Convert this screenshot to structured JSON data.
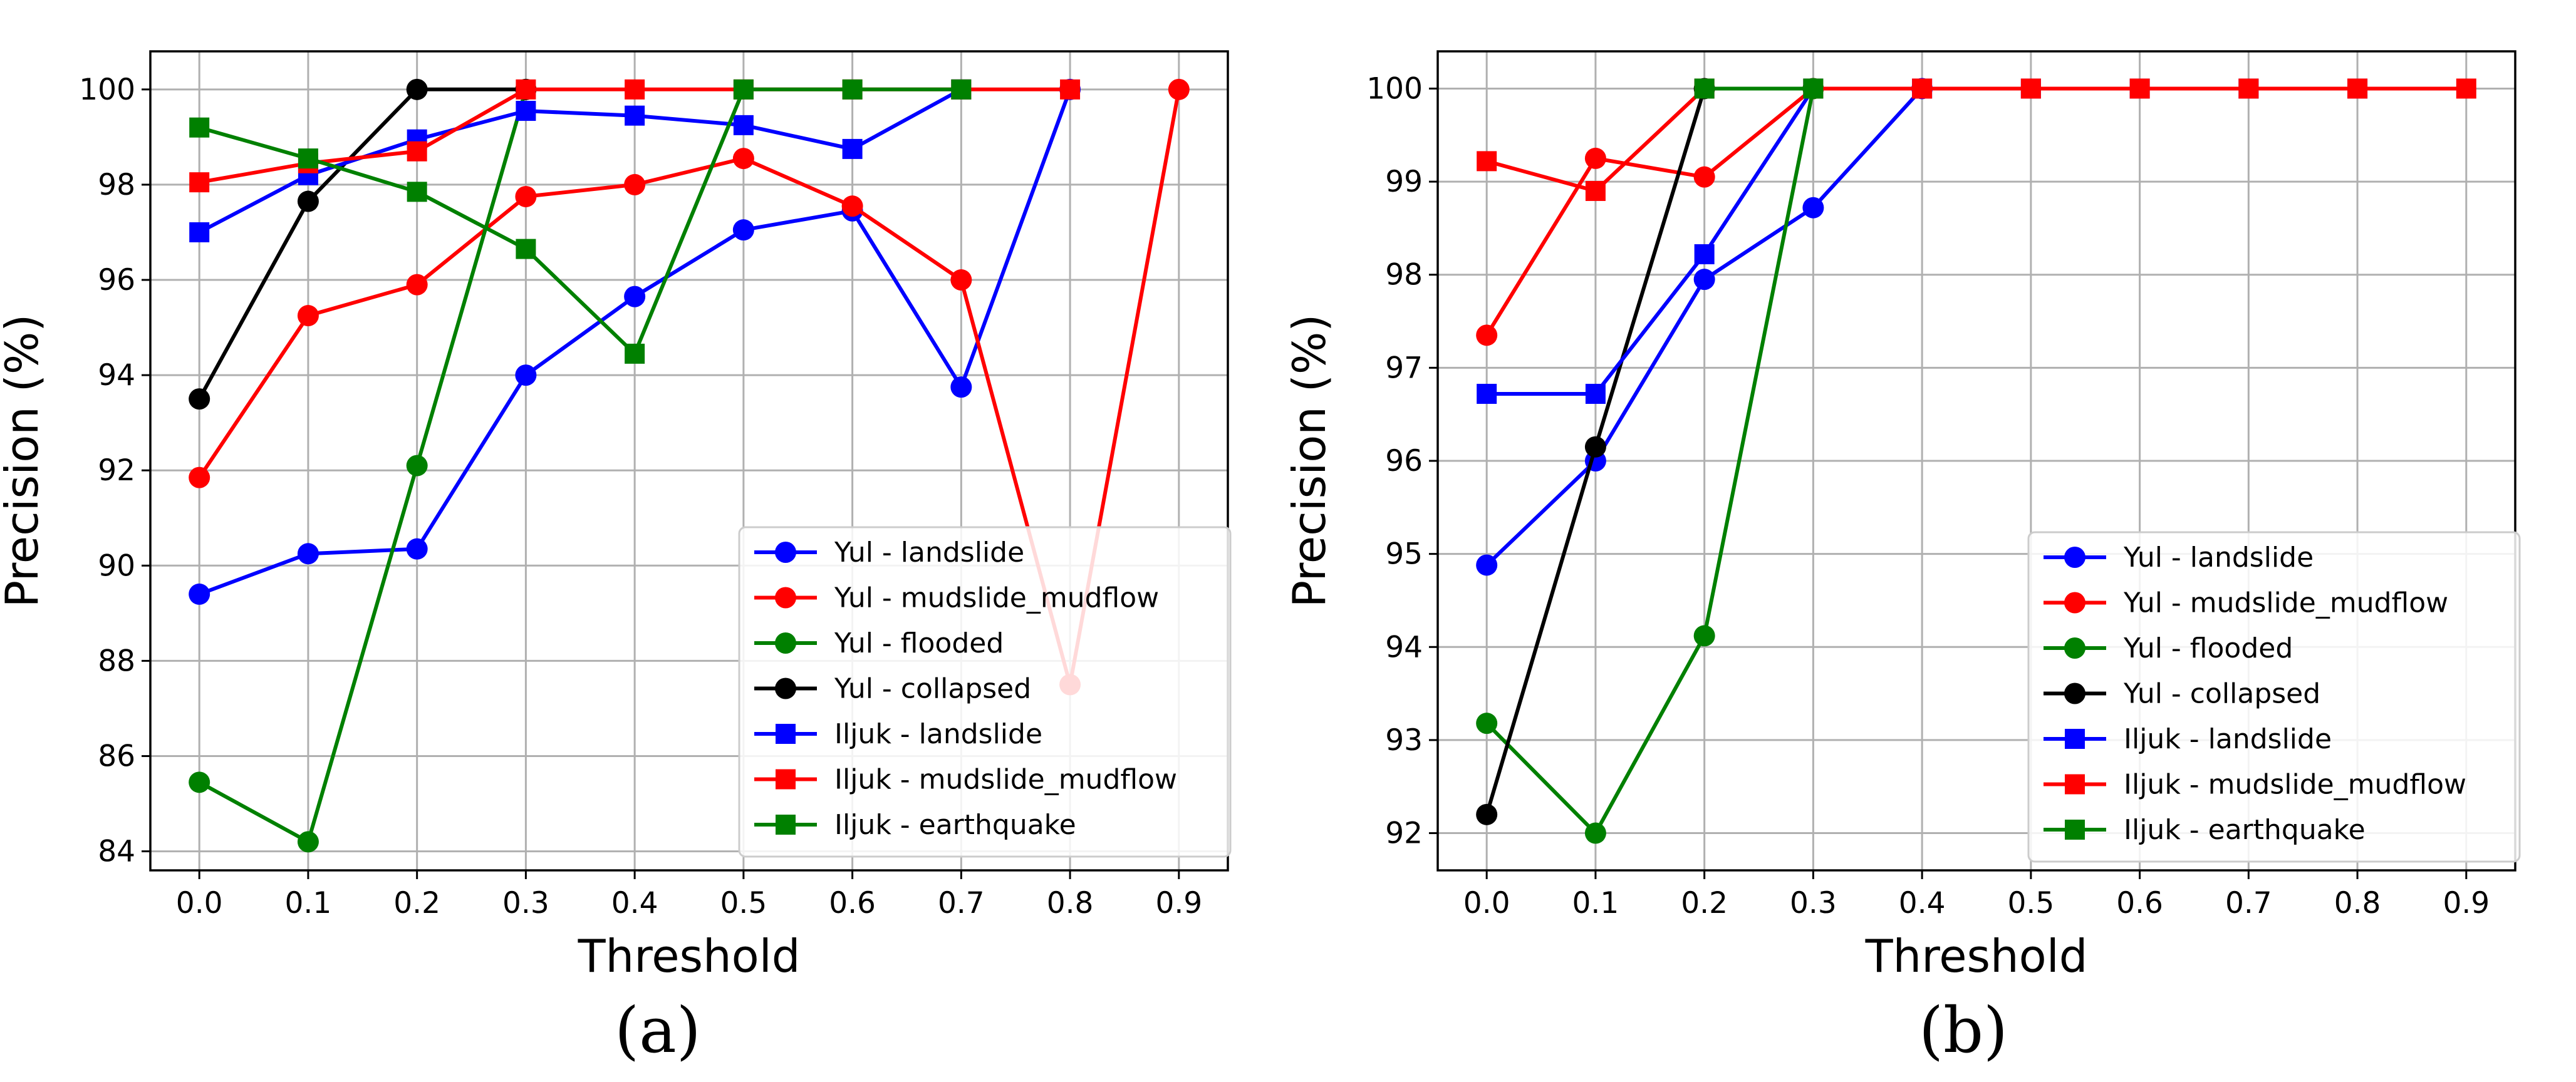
{
  "chart_data": [
    {
      "type": "line",
      "caption": "(a)",
      "xlabel": "Threshold",
      "ylabel": "Precision (%)",
      "xlim": [
        -0.045,
        0.945
      ],
      "ylim": [
        83.6,
        100.8
      ],
      "x_ticks": [
        0.0,
        0.1,
        0.2,
        0.3,
        0.4,
        0.5,
        0.6,
        0.7,
        0.8,
        0.9
      ],
      "x_tick_labels": [
        "0.0",
        "0.1",
        "0.2",
        "0.3",
        "0.4",
        "0.5",
        "0.6",
        "0.7",
        "0.8",
        "0.9"
      ],
      "y_ticks": [
        84,
        86,
        88,
        90,
        92,
        94,
        96,
        98,
        100
      ],
      "y_tick_labels": [
        "84",
        "86",
        "88",
        "90",
        "92",
        "94",
        "96",
        "98",
        "100"
      ],
      "grid": true,
      "legend_position": "lower-right",
      "series": [
        {
          "name": "Yul - landslide",
          "color": "#0000ff",
          "marker": "circle",
          "x": [
            0.0,
            0.1,
            0.2,
            0.3,
            0.4,
            0.5,
            0.6,
            0.7,
            0.8
          ],
          "values": [
            89.4,
            90.25,
            90.35,
            94.0,
            95.65,
            97.05,
            97.45,
            93.75,
            100.0
          ]
        },
        {
          "name": "Yul - mudslide_mudflow",
          "color": "#ff0000",
          "marker": "circle",
          "x": [
            0.0,
            0.1,
            0.2,
            0.3,
            0.4,
            0.5,
            0.6,
            0.7,
            0.8,
            0.9
          ],
          "values": [
            91.85,
            95.25,
            95.9,
            97.75,
            98.0,
            98.55,
            97.55,
            96.0,
            87.5,
            100.0
          ]
        },
        {
          "name": "Yul - flooded",
          "color": "#008000",
          "marker": "circle",
          "x": [
            0.0,
            0.1,
            0.2,
            0.3
          ],
          "values": [
            85.45,
            84.2,
            92.1,
            100.0
          ]
        },
        {
          "name": "Yul - collapsed",
          "color": "#000000",
          "marker": "circle",
          "x": [
            0.0,
            0.1,
            0.2,
            0.3
          ],
          "values": [
            93.5,
            97.65,
            100.0,
            100.0
          ]
        },
        {
          "name": "Iljuk - landslide",
          "color": "#0000ff",
          "marker": "square",
          "x": [
            0.0,
            0.1,
            0.2,
            0.3,
            0.4,
            0.5,
            0.6,
            0.7
          ],
          "values": [
            97.0,
            98.2,
            98.95,
            99.55,
            99.45,
            99.25,
            98.75,
            100.0
          ]
        },
        {
          "name": "Iljuk - mudslide_mudflow",
          "color": "#ff0000",
          "marker": "square",
          "x": [
            0.0,
            0.1,
            0.2,
            0.3,
            0.4,
            0.5,
            0.6,
            0.7,
            0.8
          ],
          "values": [
            98.05,
            98.45,
            98.7,
            100.0,
            100.0,
            100.0,
            100.0,
            100.0,
            100.0
          ]
        },
        {
          "name": "Iljuk - earthquake",
          "color": "#008000",
          "marker": "square",
          "x": [
            0.0,
            0.1,
            0.2,
            0.3,
            0.4,
            0.5,
            0.6,
            0.7
          ],
          "values": [
            99.2,
            98.55,
            97.85,
            96.65,
            94.45,
            100.0,
            100.0,
            100.0
          ]
        }
      ]
    },
    {
      "type": "line",
      "caption": "(b)",
      "xlabel": "Threshold",
      "ylabel": "Precision (%)",
      "xlim": [
        -0.045,
        0.945
      ],
      "ylim": [
        91.6,
        100.4
      ],
      "x_ticks": [
        0.0,
        0.1,
        0.2,
        0.3,
        0.4,
        0.5,
        0.6,
        0.7,
        0.8,
        0.9
      ],
      "x_tick_labels": [
        "0.0",
        "0.1",
        "0.2",
        "0.3",
        "0.4",
        "0.5",
        "0.6",
        "0.7",
        "0.8",
        "0.9"
      ],
      "y_ticks": [
        92,
        93,
        94,
        95,
        96,
        97,
        98,
        99,
        100
      ],
      "y_tick_labels": [
        "92",
        "93",
        "94",
        "95",
        "96",
        "97",
        "98",
        "99",
        "100"
      ],
      "grid": true,
      "legend_position": "lower-right",
      "series": [
        {
          "name": "Yul - landslide",
          "color": "#0000ff",
          "marker": "circle",
          "x": [
            0.0,
            0.1,
            0.2,
            0.3,
            0.4
          ],
          "values": [
            94.88,
            96.0,
            97.95,
            98.72,
            100.0
          ]
        },
        {
          "name": "Yul - mudslide_mudflow",
          "color": "#ff0000",
          "marker": "circle",
          "x": [
            0.0,
            0.1,
            0.2,
            0.3
          ],
          "values": [
            97.35,
            99.25,
            99.05,
            100.0
          ]
        },
        {
          "name": "Yul - flooded",
          "color": "#008000",
          "marker": "circle",
          "x": [
            0.0,
            0.1,
            0.2,
            0.3
          ],
          "values": [
            93.18,
            92.0,
            94.12,
            100.0
          ]
        },
        {
          "name": "Yul - collapsed",
          "color": "#000000",
          "marker": "circle",
          "x": [
            0.0,
            0.1,
            0.2
          ],
          "values": [
            92.2,
            96.15,
            100.0
          ]
        },
        {
          "name": "Iljuk - landslide",
          "color": "#0000ff",
          "marker": "square",
          "x": [
            0.0,
            0.1,
            0.2,
            0.3,
            0.4,
            0.5,
            0.6,
            0.7,
            0.8
          ],
          "values": [
            96.72,
            96.72,
            98.22,
            100.0,
            100.0,
            100.0,
            100.0,
            100.0,
            100.0
          ]
        },
        {
          "name": "Iljuk - mudslide_mudflow",
          "color": "#ff0000",
          "marker": "square",
          "x": [
            0.0,
            0.1,
            0.2,
            0.3,
            0.4,
            0.5,
            0.6,
            0.7,
            0.8,
            0.9
          ],
          "values": [
            99.22,
            98.9,
            100.0,
            100.0,
            100.0,
            100.0,
            100.0,
            100.0,
            100.0,
            100.0
          ]
        },
        {
          "name": "Iljuk - earthquake",
          "color": "#008000",
          "marker": "square",
          "x": [
            0.2,
            0.3
          ],
          "values": [
            100.0,
            100.0
          ]
        }
      ]
    }
  ]
}
